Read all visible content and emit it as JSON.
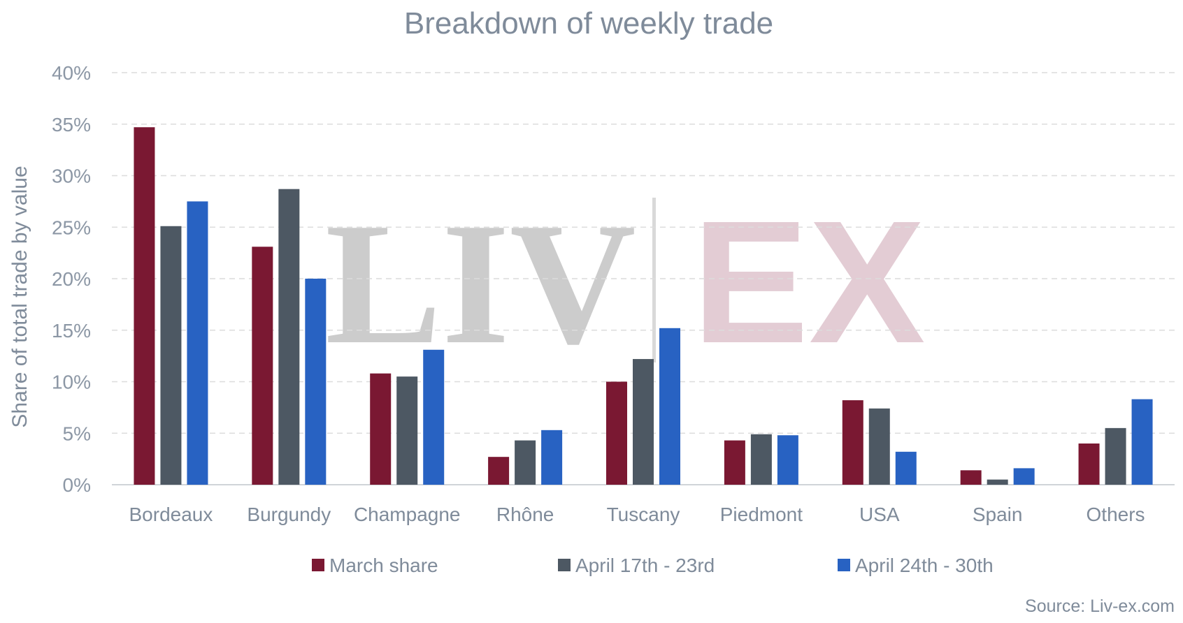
{
  "chart_data": {
    "type": "bar",
    "title": "Breakdown of weekly trade",
    "xlabel": "",
    "ylabel": "Share of total trade by value",
    "ylim": [
      0,
      40
    ],
    "yticks": [
      "0%",
      "5%",
      "10%",
      "15%",
      "20%",
      "25%",
      "30%",
      "35%",
      "40%"
    ],
    "grid": true,
    "legend_position": "bottom",
    "categories": [
      "Bordeaux",
      "Burgundy",
      "Champagne",
      "Rhône",
      "Tuscany",
      "Piedmont",
      "USA",
      "Spain",
      "Others"
    ],
    "series": [
      {
        "name": "March share",
        "color": "#7a1832",
        "values": [
          34.7,
          23.1,
          10.8,
          2.7,
          10.0,
          4.3,
          8.2,
          1.4,
          4.0
        ]
      },
      {
        "name": "April 17th - 23rd",
        "color": "#4d5863",
        "values": [
          25.1,
          28.7,
          10.5,
          4.3,
          12.2,
          4.9,
          7.4,
          0.5,
          5.5
        ]
      },
      {
        "name": "April 24th - 30th",
        "color": "#2862c2",
        "values": [
          27.5,
          20.0,
          13.1,
          5.3,
          15.2,
          4.8,
          3.2,
          1.6,
          8.3
        ]
      }
    ],
    "source": "Source: Liv-ex.com",
    "watermark": {
      "left": "LIV",
      "right": "EX"
    }
  }
}
